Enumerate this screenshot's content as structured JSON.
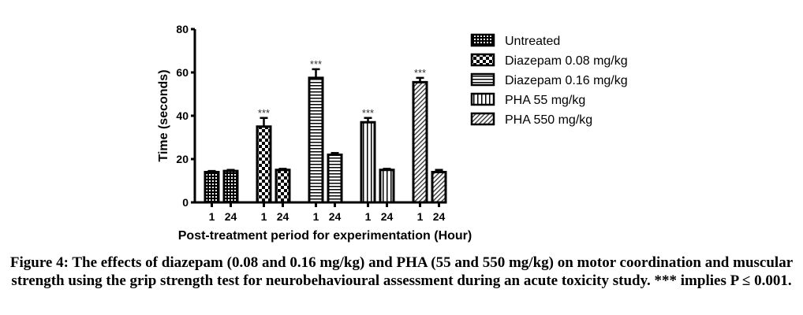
{
  "chart_data": {
    "type": "bar",
    "title": "",
    "xlabel": "Post-treatment period for experimentation (Hour)",
    "ylabel": "Time (seconds)",
    "ylim": [
      0,
      80
    ],
    "yticks": [
      "0",
      "20",
      "40",
      "60",
      "80"
    ],
    "categories": [
      "1",
      "24"
    ],
    "legend_position": "right",
    "series": [
      {
        "name": "Untreated",
        "pattern": "dots",
        "values": [
          14,
          14.5
        ],
        "errors": [
          0.5,
          0.5
        ],
        "sig": [
          "",
          ""
        ]
      },
      {
        "name": "Diazepam 0.08 mg/kg",
        "pattern": "checker",
        "values": [
          35,
          15
        ],
        "errors": [
          4,
          0.5
        ],
        "sig": [
          "***",
          ""
        ]
      },
      {
        "name": "Diazepam 0.16 mg/kg",
        "pattern": "hlines",
        "values": [
          57.5,
          22
        ],
        "errors": [
          4,
          0.8
        ],
        "sig": [
          "***",
          ""
        ]
      },
      {
        "name": "PHA 55 mg/kg",
        "pattern": "vlines",
        "values": [
          37,
          15
        ],
        "errors": [
          2,
          0.5
        ],
        "sig": [
          "***",
          ""
        ]
      },
      {
        "name": "PHA 550 mg/kg",
        "pattern": "diag",
        "values": [
          55.5,
          14
        ],
        "errors": [
          2,
          1
        ],
        "sig": [
          "***",
          ""
        ]
      }
    ]
  },
  "caption": "Figure 4: The effects of diazepam (0.08 and 0.16 mg/kg) and PHA (55 and 550 mg/kg) on motor coordination and muscular strength using the grip strength test for neurobehavioural assessment during an acute toxicity study. *** implies P ≤ 0.001."
}
